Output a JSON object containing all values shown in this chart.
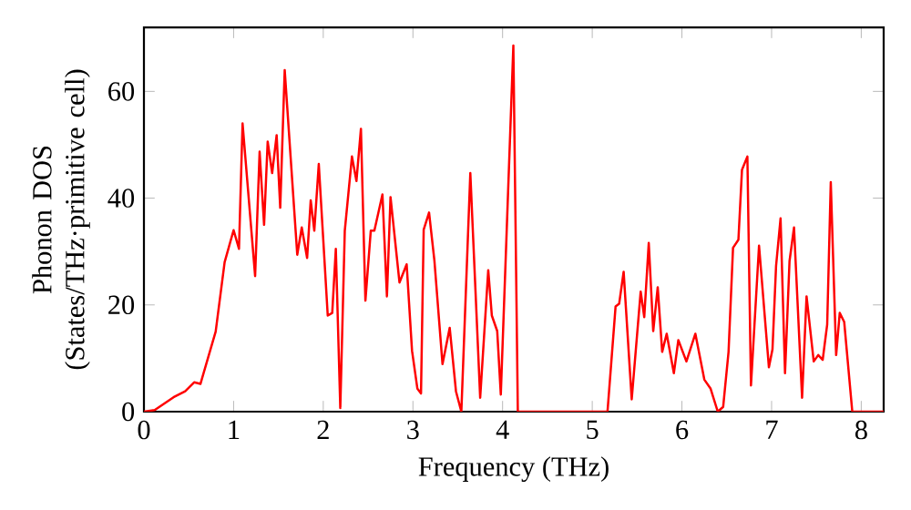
{
  "chart_data": {
    "type": "line",
    "xlabel": "Frequency (THz)",
    "ylabel": "Phonon DOS (States/THz·primitive cell)",
    "xlim": [
      0,
      8.25
    ],
    "ylim": [
      0,
      72
    ],
    "xticks": [
      0,
      1,
      2,
      3,
      4,
      5,
      6,
      7,
      8
    ],
    "yticks": [
      0,
      20,
      40,
      60
    ],
    "grid": false,
    "series": [
      {
        "color": "#ff0000",
        "x": [
          0,
          0.12,
          0.33,
          0.46,
          0.56,
          0.63,
          0.8,
          0.9,
          1.0,
          1.06,
          1.1,
          1.24,
          1.29,
          1.34,
          1.38,
          1.43,
          1.48,
          1.52,
          1.57,
          1.71,
          1.76,
          1.82,
          1.86,
          1.9,
          1.95,
          2.05,
          2.1,
          2.14,
          2.19,
          2.24,
          2.32,
          2.37,
          2.42,
          2.47,
          2.53,
          2.57,
          2.66,
          2.71,
          2.75,
          2.85,
          2.93,
          2.99,
          3.05,
          3.09,
          3.12,
          3.18,
          3.24,
          3.33,
          3.41,
          3.48,
          3.54,
          3.64,
          3.75,
          3.84,
          3.88,
          3.94,
          3.98,
          4.12,
          4.17,
          5.17,
          5.26,
          5.3,
          5.35,
          5.44,
          5.54,
          5.58,
          5.63,
          5.68,
          5.73,
          5.78,
          5.83,
          5.91,
          5.96,
          6.05,
          6.15,
          6.25,
          6.32,
          6.4,
          6.46,
          6.52,
          6.57,
          6.63,
          6.67,
          6.73,
          6.77,
          6.86,
          6.97,
          7.01,
          7.05,
          7.1,
          7.15,
          7.2,
          7.25,
          7.34,
          7.39,
          7.47,
          7.52,
          7.57,
          7.62,
          7.66,
          7.72,
          7.76,
          7.81,
          7.9,
          8.25
        ],
        "values": [
          0,
          0.3,
          2.7,
          3.8,
          5.5,
          5.2,
          15,
          28,
          34,
          30.5,
          54,
          25.4,
          48.7,
          35,
          50.6,
          44.7,
          51.8,
          38.2,
          64,
          29.4,
          34.5,
          28.8,
          39.6,
          33.9,
          46.4,
          18,
          18.5,
          30.5,
          0.7,
          33.9,
          47.8,
          43.2,
          53,
          20.8,
          33.9,
          33.9,
          40.7,
          21.6,
          40.2,
          24.2,
          27.6,
          11.4,
          4.3,
          3.4,
          34.1,
          37.3,
          28.2,
          8.9,
          15.7,
          3.8,
          0,
          44.7,
          2.6,
          26.5,
          18,
          15.1,
          3.2,
          68.6,
          0,
          0,
          19.7,
          20.2,
          26.2,
          2.3,
          22.5,
          17.7,
          31.6,
          15.1,
          23.3,
          11.2,
          14.6,
          7.2,
          13.4,
          9.4,
          14.6,
          6.0,
          4.3,
          0,
          0.9,
          11.2,
          30.7,
          32.2,
          45.3,
          47.8,
          4.9,
          31.1,
          8.3,
          11.7,
          27.3,
          36.2,
          7.2,
          28.2,
          34.5,
          2.6,
          21.6,
          9.4,
          10.6,
          9.7,
          16.3,
          43,
          10.6,
          18.5,
          16.8,
          0,
          0
        ]
      }
    ]
  }
}
